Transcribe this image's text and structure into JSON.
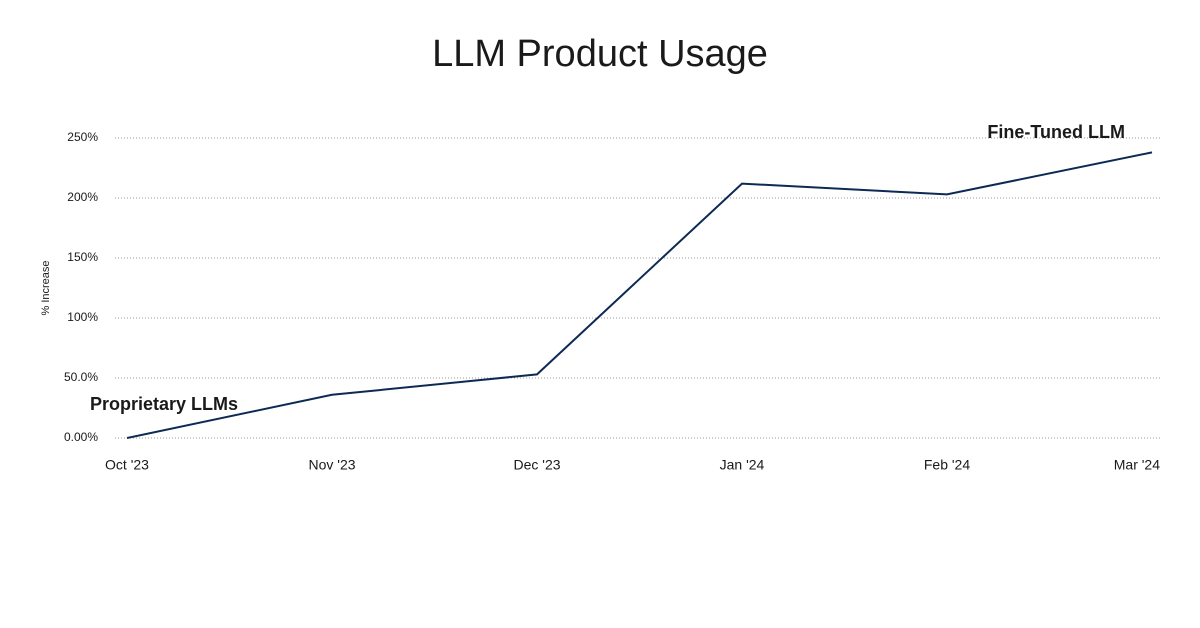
{
  "chart_data": {
    "type": "line",
    "title": "LLM Product Usage",
    "y_label": "% Increase",
    "categories": [
      "Oct '23",
      "Nov '23",
      "Dec '23",
      "Jan '24",
      "Feb '24",
      "Mar '24"
    ],
    "values": [
      0,
      36,
      53,
      212,
      203,
      238
    ],
    "color": "#0d2a55",
    "ylim": [
      0,
      250
    ],
    "yticks": [
      {
        "value": 0,
        "label": "0.00%"
      },
      {
        "value": 50,
        "label": "50.0%"
      },
      {
        "value": 100,
        "label": "100%"
      },
      {
        "value": 150,
        "label": "150%"
      },
      {
        "value": 200,
        "label": "200%"
      },
      {
        "value": 250,
        "label": "250%"
      }
    ],
    "grid": true,
    "annotations": [
      "Proprietary LLMs",
      "Fine-Tuned LLM"
    ]
  }
}
